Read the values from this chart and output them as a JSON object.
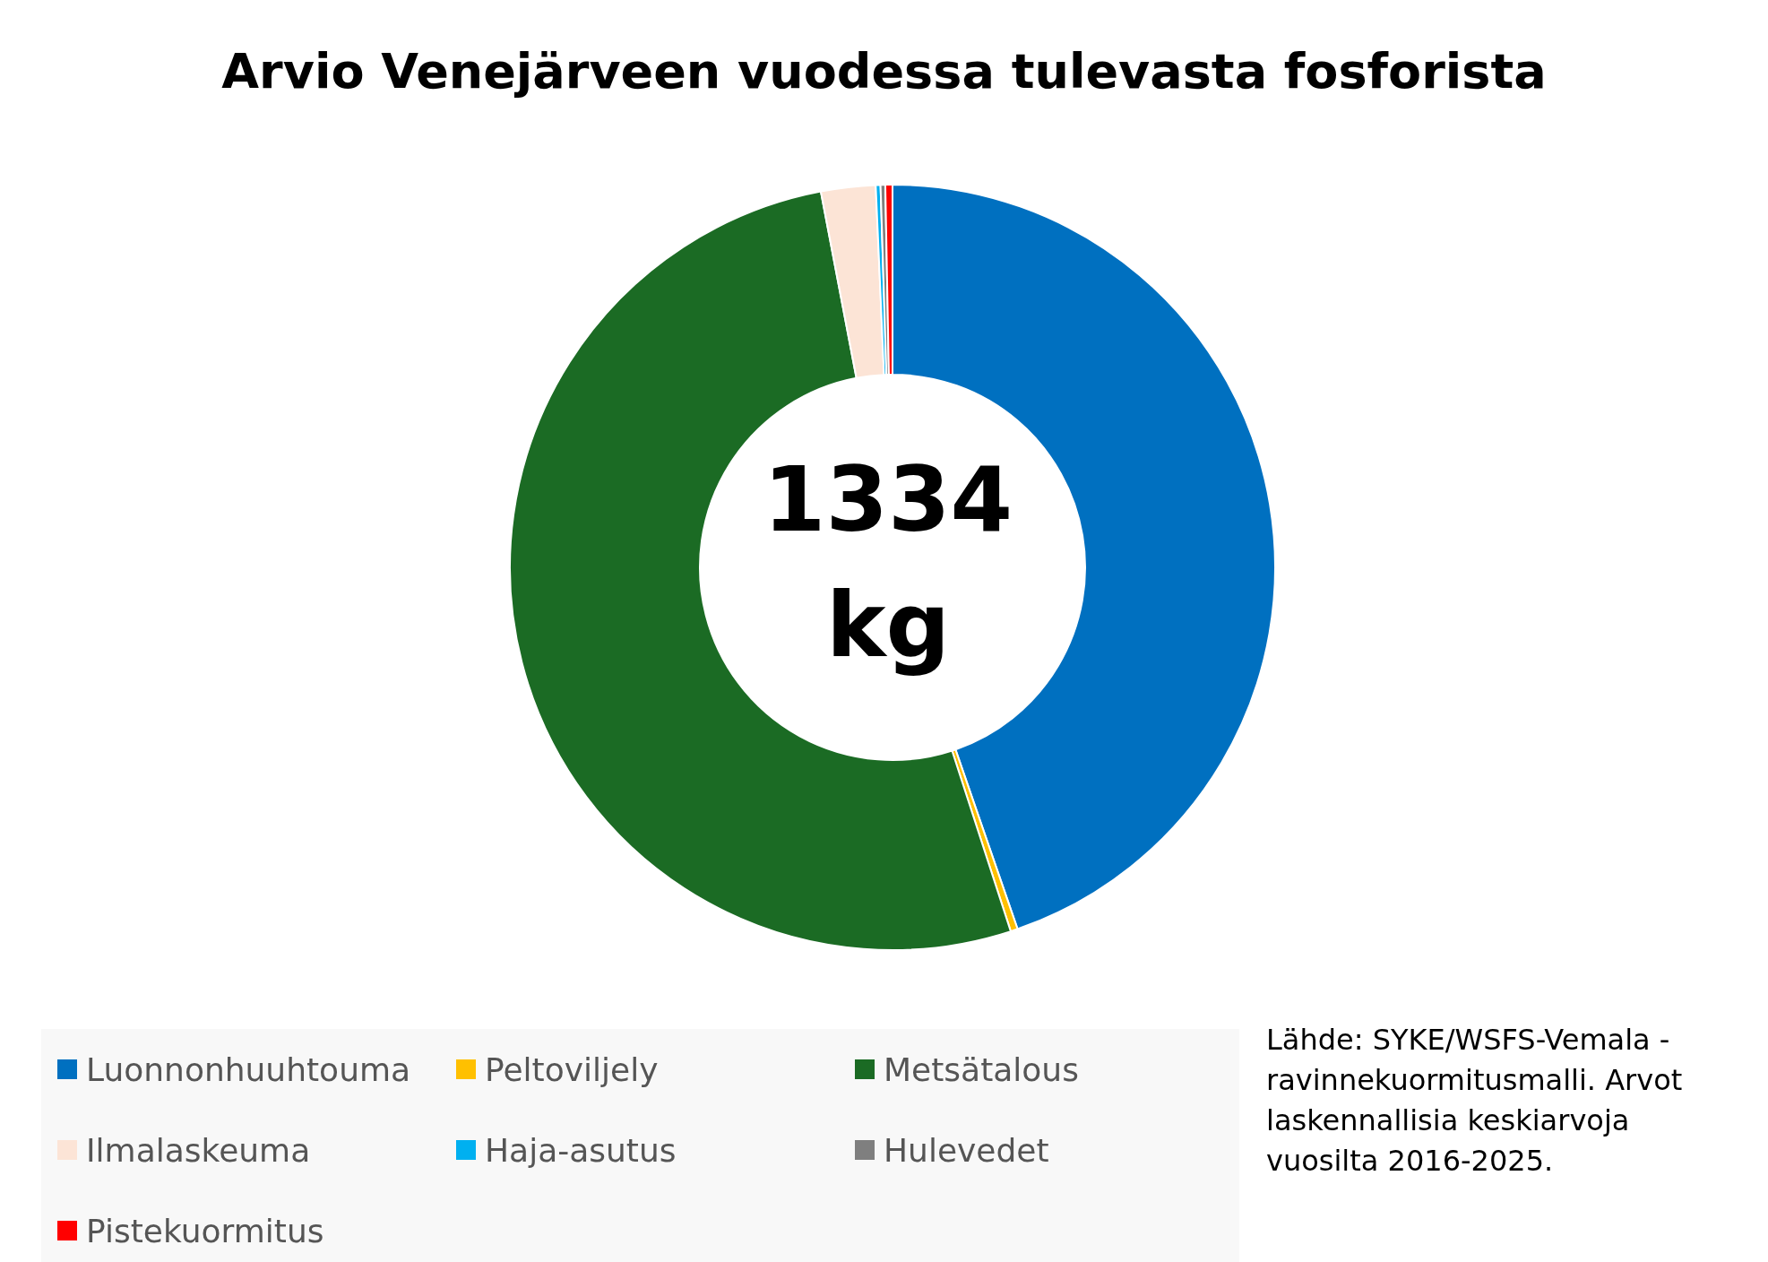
{
  "chart_data": {
    "type": "donut",
    "title": "Arvio Venejärveen vuodessa tulevasta fosforista",
    "categories": [
      "Luonnonhuuhtouma",
      "Peltoviljely",
      "Metsätalous",
      "Ilmalaskeuma",
      "Haja-asutus",
      "Hulevedet",
      "Pistekuormitus"
    ],
    "values": [
      44.7,
      0.3,
      52.0,
      2.3,
      0.2,
      0.2,
      0.3
    ],
    "colors": [
      "#0070c0",
      "#ffc000",
      "#1b6b24",
      "#fce4d6",
      "#00b0f0",
      "#7f7f7f",
      "#ff0000"
    ],
    "legend": "bottom",
    "annotations": [
      "1334 kg",
      "Lähde: SYKE/WSFS-Vemala -ravinnekuormitusmalli. Arvot laskennallisia keskiarvoja vuosilta 2016-2025."
    ]
  }
}
